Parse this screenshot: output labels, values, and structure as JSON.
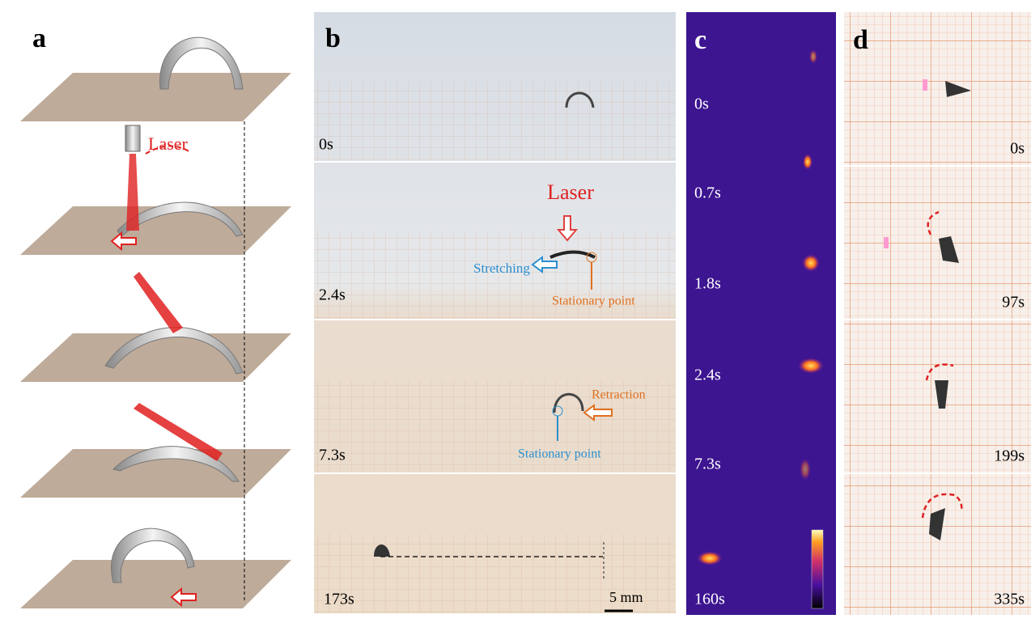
{
  "panel_a": {
    "label": "a",
    "laser_label": "Laser"
  },
  "panel_b": {
    "label": "b",
    "frames": [
      {
        "time": "0s"
      },
      {
        "time": "2.4s",
        "laser": "Laser",
        "stretching": "Stretching",
        "stationary": "Stationary point"
      },
      {
        "time": "7.3s",
        "retraction": "Retraction",
        "stationary": "Stationary point"
      },
      {
        "time": "173s",
        "scale_bar": "5 mm"
      }
    ]
  },
  "panel_c": {
    "label": "c",
    "times": [
      "0s",
      "0.7s",
      "1.8s",
      "2.4s",
      "7.3s",
      "160s"
    ]
  },
  "panel_d": {
    "label": "d",
    "times": [
      "0s",
      "97s",
      "199s",
      "335s"
    ]
  }
}
